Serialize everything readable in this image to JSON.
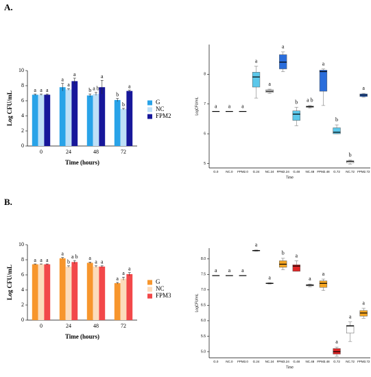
{
  "panels": [
    "A.",
    "B."
  ],
  "chart_data": [
    {
      "type": "bar",
      "x_label": "Time (hours)",
      "y_label": "Log CFU/mL",
      "categories": [
        "0",
        "24",
        "48",
        "72"
      ],
      "series": [
        {
          "name": "G",
          "color": "#29a3e8",
          "values": [
            6.8,
            7.8,
            6.7,
            6.1
          ],
          "errors": [
            0.1,
            0.5,
            0.2,
            0.2
          ],
          "letters": [
            "a",
            "a",
            "b",
            "b"
          ]
        },
        {
          "name": "NC",
          "color": "#bfe0f7",
          "values": [
            6.8,
            7.5,
            6.9,
            4.9
          ],
          "errors": [
            0.1,
            0.1,
            0.2,
            0.1
          ],
          "letters": [
            "a",
            "a",
            "a b",
            "b"
          ]
        },
        {
          "name": "FPM2",
          "color": "#17179a",
          "values": [
            6.8,
            8.6,
            7.8,
            7.3
          ],
          "errors": [
            0.1,
            0.4,
            0.9,
            0.1
          ],
          "letters": [
            "a",
            "a",
            "a",
            "a"
          ]
        }
      ],
      "ylim": [
        0,
        10
      ],
      "yticks": [
        0,
        2,
        4,
        6,
        8,
        10
      ],
      "grid": false,
      "legend": "right"
    },
    {
      "type": "box",
      "x_label": "Time",
      "y_label": "LogCFU/mL",
      "categories": [
        "G.0",
        "NC.0",
        "FPM2.0",
        "G.24",
        "NC.24",
        "FPM2.24",
        "G.48",
        "NC.48",
        "FPM2.48",
        "G.72",
        "NC.72",
        "FPM2.72"
      ],
      "colors": [
        "#ffffff",
        "#ffffff",
        "#ffffff",
        "#5cc8ea",
        "#eeeeee",
        "#2a6ddb",
        "#5cc8ea",
        "#ffffff",
        "#2a6ddb",
        "#5cc8ea",
        "#ffffff",
        "#2a6ddb"
      ],
      "boxes": [
        {
          "min": 6.75,
          "q1": 6.75,
          "median": 6.75,
          "q3": 6.75,
          "max": 6.75
        },
        {
          "min": 6.75,
          "q1": 6.75,
          "median": 6.75,
          "q3": 6.75,
          "max": 6.75
        },
        {
          "min": 6.75,
          "q1": 6.75,
          "median": 6.75,
          "q3": 6.75,
          "max": 6.75
        },
        {
          "min": 7.2,
          "q1": 7.57,
          "median": 7.91,
          "q3": 8.07,
          "max": 8.27
        },
        {
          "min": 7.36,
          "q1": 7.39,
          "median": 7.43,
          "q3": 7.48,
          "max": 7.5
        },
        {
          "min": 8.09,
          "q1": 8.18,
          "median": 8.41,
          "q3": 8.66,
          "max": 8.75
        },
        {
          "min": 6.27,
          "q1": 6.45,
          "median": 6.66,
          "q3": 6.77,
          "max": 6.89
        },
        {
          "min": 6.86,
          "q1": 6.89,
          "median": 6.91,
          "q3": 6.93,
          "max": 6.95
        },
        {
          "min": 6.95,
          "q1": 7.43,
          "median": 8.09,
          "q3": 8.14,
          "max": 8.18
        },
        {
          "min": 6.0,
          "q1": 6.0,
          "median": 6.05,
          "q3": 6.2,
          "max": 6.3
        },
        {
          "min": 4.98,
          "q1": 5.02,
          "median": 5.07,
          "q3": 5.09,
          "max": 5.11
        },
        {
          "min": 7.23,
          "q1": 7.25,
          "median": 7.3,
          "q3": 7.34,
          "max": 7.36
        }
      ],
      "letters": [
        "a",
        "a",
        "a",
        "a",
        "a",
        "a",
        "b",
        "a b",
        "a",
        "b",
        "b",
        "a"
      ],
      "ylim": [
        4.85,
        9
      ],
      "yticks": [
        5,
        6,
        7,
        8
      ],
      "grid": false
    },
    {
      "type": "bar",
      "x_label": "Time (hours)",
      "y_label": "Log CFU/mL",
      "categories": [
        "0",
        "24",
        "48",
        "72"
      ],
      "series": [
        {
          "name": "G",
          "color": "#f7962d",
          "values": [
            7.4,
            8.2,
            7.6,
            4.9
          ],
          "errors": [
            0.05,
            0.1,
            0.1,
            0.1
          ],
          "letters": [
            "a",
            "a",
            "a",
            "a"
          ]
        },
        {
          "name": "NC",
          "color": "#fcdcbc",
          "values": [
            7.4,
            7.1,
            7.1,
            5.5
          ],
          "errors": [
            0.05,
            0.1,
            0.1,
            0.2
          ],
          "letters": [
            "a",
            "b",
            "a",
            "a"
          ]
        },
        {
          "name": "FPM3",
          "color": "#f2484a",
          "values": [
            7.4,
            7.7,
            7.1,
            6.1
          ],
          "errors": [
            0.05,
            0.2,
            0.1,
            0.2
          ],
          "letters": [
            "a",
            "a b",
            "a",
            "a"
          ]
        }
      ],
      "ylim": [
        0,
        10
      ],
      "yticks": [
        0,
        2,
        4,
        6,
        8,
        10
      ],
      "grid": false,
      "legend": "right"
    },
    {
      "type": "box",
      "x_label": "Time",
      "y_label": "LogCFU/mL",
      "categories": [
        "G.0",
        "NC.0",
        "FPM3.0",
        "G.24",
        "NC.24",
        "FPM3.24",
        "G.48",
        "NC.48",
        "FPM3.48",
        "G.72",
        "NC.72",
        "FPM3.72"
      ],
      "colors": [
        "#ffffff",
        "#ffffff",
        "#ffffff",
        "#ffffff",
        "#ffffff",
        "#f5a623",
        "#e02626",
        "#eeeeee",
        "#f5a623",
        "#e02626",
        "#ffffff",
        "#f5a623"
      ],
      "boxes": [
        {
          "min": 7.46,
          "q1": 7.46,
          "median": 7.46,
          "q3": 7.46,
          "max": 7.46
        },
        {
          "min": 7.46,
          "q1": 7.46,
          "median": 7.46,
          "q3": 7.46,
          "max": 7.46
        },
        {
          "min": 7.46,
          "q1": 7.46,
          "median": 7.46,
          "q3": 7.46,
          "max": 7.46
        },
        {
          "min": 8.25,
          "q1": 8.26,
          "median": 8.27,
          "q3": 8.28,
          "max": 8.29
        },
        {
          "min": 7.19,
          "q1": 7.2,
          "median": 7.21,
          "q3": 7.22,
          "max": 7.23
        },
        {
          "min": 7.65,
          "q1": 7.73,
          "median": 7.83,
          "q3": 7.94,
          "max": 8.02
        },
        {
          "min": 7.6,
          "q1": 7.6,
          "median": 7.77,
          "q3": 7.81,
          "max": 7.94
        },
        {
          "min": 7.1,
          "q1": 7.13,
          "median": 7.15,
          "q3": 7.17,
          "max": 7.19
        },
        {
          "min": 6.98,
          "q1": 7.08,
          "median": 7.21,
          "q3": 7.29,
          "max": 7.35
        },
        {
          "min": 4.85,
          "q1": 4.92,
          "median": 5.0,
          "q3": 5.1,
          "max": 5.15
        },
        {
          "min": 5.33,
          "q1": 5.6,
          "median": 5.83,
          "q3": 5.85,
          "max": 5.96
        },
        {
          "min": 6.08,
          "q1": 6.15,
          "median": 6.25,
          "q3": 6.33,
          "max": 6.4
        }
      ],
      "letters": [
        "a",
        "a",
        "a",
        "a",
        "a",
        "b",
        "a",
        "a",
        "a",
        "a",
        "a",
        "a"
      ],
      "ylim": [
        4.8,
        8.35
      ],
      "yticks": [
        {
          "value": 5,
          "label": "5.0"
        },
        {
          "value": 5.5,
          "label": "5.5"
        },
        {
          "value": 6,
          "label": "6.0"
        },
        {
          "value": 6.5,
          "label": "6.5"
        },
        {
          "value": 7,
          "label": "7.0"
        },
        {
          "value": 7.5,
          "label": "7.5"
        },
        {
          "value": 8,
          "label": "8.0"
        }
      ],
      "grid": false
    }
  ]
}
